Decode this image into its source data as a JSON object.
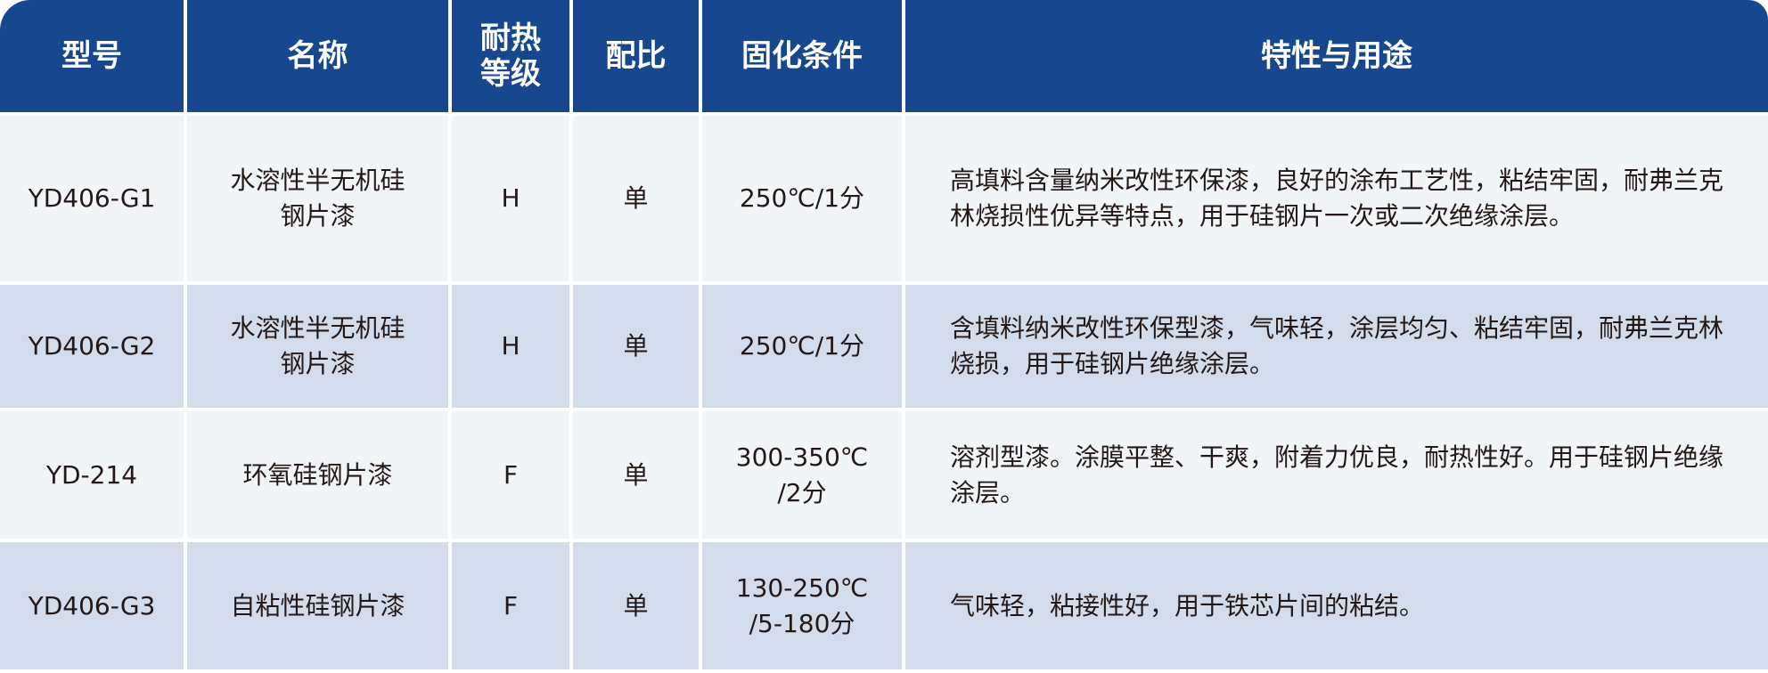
{
  "colors": {
    "header_bg": "#17478f",
    "row_light": "#f2f5f8",
    "row_dark": "#d3dcea",
    "text": "#231815"
  },
  "headers": [
    "型号",
    "名称",
    "耐热\n等级",
    "配比",
    "固化条件",
    "特性与用途"
  ],
  "rows": [
    {
      "model": "YD406-G1",
      "name": "水溶性半无机硅\n钢片漆",
      "heat_class": "H",
      "ratio": "单",
      "curing": "250℃/1分",
      "usage": "高填料含量纳米改性环保漆，良好的涂布工艺性，粘结牢固，耐弗兰克林烧损性优异等特点，用于硅钢片一次或二次绝缘涂层。"
    },
    {
      "model": "YD406-G2",
      "name": "水溶性半无机硅\n钢片漆",
      "heat_class": "H",
      "ratio": "单",
      "curing": "250℃/1分",
      "usage": "含填料纳米改性环保型漆，气味轻，涂层均匀、粘结牢固，耐弗兰克林烧损，用于硅钢片绝缘涂层。"
    },
    {
      "model": "YD-214",
      "name": "环氧硅钢片漆",
      "heat_class": "F",
      "ratio": "单",
      "curing": "300-350℃\n/2分",
      "usage": "溶剂型漆。涂膜平整、干爽，附着力优良，耐热性好。用于硅钢片绝缘涂层。"
    },
    {
      "model": "YD406-G3",
      "name": "自粘性硅钢片漆",
      "heat_class": "F",
      "ratio": "单",
      "curing": "130-250℃\n/5-180分",
      "usage": "气味轻，粘接性好，用于铁芯片间的粘结。"
    }
  ]
}
